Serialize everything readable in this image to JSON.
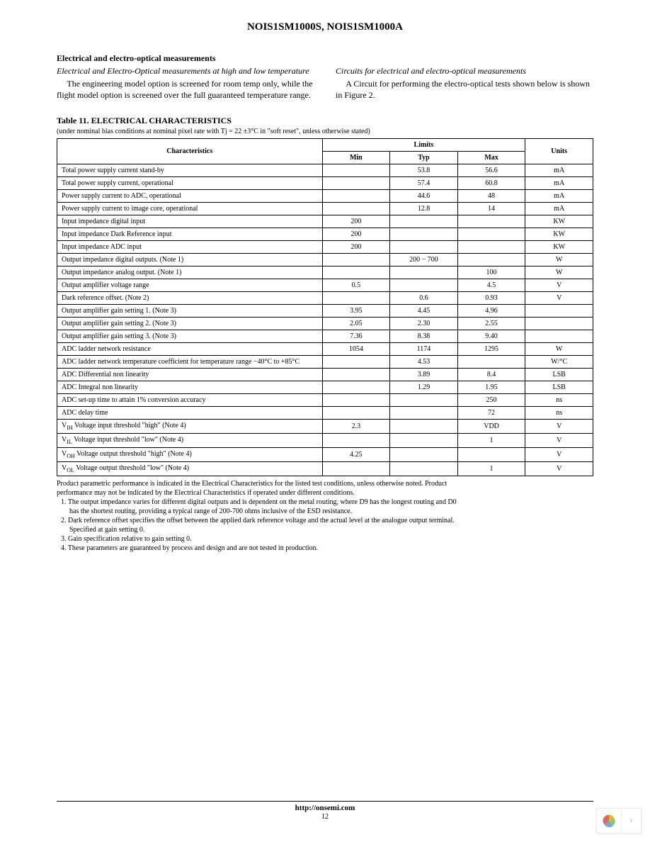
{
  "doc_title": "NOIS1SM1000S, NOIS1SM1000A",
  "section_heading": "Electrical and electro-optical measurements",
  "left_col": {
    "subhead": "Electrical and Electro-Optical measurements at high and low temperature",
    "body": "The engineering model option is screened for room temp only, while the flight model option is screened over the full guaranteed temperature range."
  },
  "right_col": {
    "subhead": "Circuits for electrical and electro-optical measurements",
    "body": "A Circuit for performing the electro-optical tests shown below is shown in Figure 2."
  },
  "table": {
    "title": "Table 11. ELECTRICAL CHARACTERISTICS",
    "subtitle": "(under nominal bias conditions at nominal pixel rate with Tj = 22 ±3°C in \"soft reset\", unless otherwise stated)",
    "header": {
      "characteristics": "Characteristics",
      "limits": "Limits",
      "min": "Min",
      "typ": "Typ",
      "max": "Max",
      "units": "Units"
    },
    "rows": [
      {
        "c": "Total power supply current stand-by",
        "min": "",
        "typ": "53.8",
        "max": "56.6",
        "u": "mA"
      },
      {
        "c": "Total power supply current, operational",
        "min": "",
        "typ": "57.4",
        "max": "60.8",
        "u": "mA"
      },
      {
        "c": "Power supply current to ADC, operational",
        "min": "",
        "typ": "44.6",
        "max": "48",
        "u": "mA"
      },
      {
        "c": "Power supply current to image core, operational",
        "min": "",
        "typ": "12.8",
        "max": "14",
        "u": "mA"
      },
      {
        "c": "Input impedance digital input",
        "min": "200",
        "typ": "",
        "max": "",
        "u": "KW"
      },
      {
        "c": "Input impedance Dark Reference input",
        "min": "200",
        "typ": "",
        "max": "",
        "u": "KW"
      },
      {
        "c": "Input impedance ADC input",
        "min": "200",
        "typ": "",
        "max": "",
        "u": "KW"
      },
      {
        "c": "Output impedance digital outputs. (Note 1)",
        "min": "",
        "typ": "200 − 700",
        "max": "",
        "u": "W"
      },
      {
        "c": "Output impedance analog output. (Note 1)",
        "min": "",
        "typ": "",
        "max": "100",
        "u": "W"
      },
      {
        "c": "Output amplifier voltage range",
        "min": "0.5",
        "typ": "",
        "max": "4.5",
        "u": "V"
      },
      {
        "c": "Dark reference offset. (Note 2)",
        "min": "",
        "typ": "0.6",
        "max": "0.93",
        "u": "V"
      },
      {
        "c": "Output amplifier gain setting 1. (Note 3)",
        "min": "3.95",
        "typ": "4.45",
        "max": "4.96",
        "u": ""
      },
      {
        "c": "Output amplifier gain setting 2. (Note 3)",
        "min": "2.05",
        "typ": "2.30",
        "max": "2.55",
        "u": ""
      },
      {
        "c": "Output amplifier gain setting 3. (Note 3)",
        "min": "7.36",
        "typ": "8.38",
        "max": "9.40",
        "u": ""
      },
      {
        "c": "ADC ladder network resistance",
        "min": "1054",
        "typ": "1174",
        "max": "1295",
        "u": "W"
      },
      {
        "c": "ADC ladder network temperature coefficient for temperature range −40°C to +85°C",
        "min": "",
        "typ": "4.53",
        "max": "",
        "u": "W/°C"
      },
      {
        "c": "ADC Differential non linearity",
        "min": "",
        "typ": "3.89",
        "max": "8.4",
        "u": "LSB"
      },
      {
        "c": "ADC Integral non linearity",
        "min": "",
        "typ": "1.29",
        "max": "1.95",
        "u": "LSB"
      },
      {
        "c": "ADC set-up time to attain 1% conversion accuracy",
        "min": "",
        "typ": "",
        "max": "250",
        "u": "ns"
      },
      {
        "c": "ADC delay time",
        "min": "",
        "typ": "",
        "max": "72",
        "u": "ns"
      },
      {
        "c": "V__ Voltage input threshold \"high\" (Note 4)",
        "min": "2.3",
        "typ": "",
        "max": "VDD",
        "u": "V",
        "sub": "IH"
      },
      {
        "c": "V__ Voltage input threshold \"low\" (Note 4)",
        "min": "",
        "typ": "",
        "max": "1",
        "u": "V",
        "sub": "IL"
      },
      {
        "c": "V__ Voltage output threshold \"high\" (Note 4)",
        "min": "4.25",
        "typ": "",
        "max": "",
        "u": "V",
        "sub": "OH"
      },
      {
        "c": "V__ Voltage output threshold \"low\" (Note 4)",
        "min": "",
        "typ": "",
        "max": "1",
        "u": "V",
        "sub": "OL"
      }
    ]
  },
  "notes": {
    "intro1": "Product parametric performance is indicated in the Electrical Characteristics for the listed test conditions, unless otherwise noted. Product",
    "intro2": "performance may not be indicated by the Electrical Characteristics if operated under different conditions.",
    "n1a": "1.   The output impedance varies for different digital outputs and is dependent on the metal routing, where D9 has the longest routing and D0",
    "n1b": "has the shortest routing, providing a typical range of 200-700 ohms inclusive of the ESD resistance.",
    "n2a": "2. Dark reference offset specifies the offset between the applied dark reference voltage and the actual level at the analogue output terminal.",
    "n2b": "Specified at gain setting 0.",
    "n3": "3. Gain specification relative to gain setting 0.",
    "n4": "4. These parameters are guaranteed by process and design and are not tested in production."
  },
  "footer": {
    "url": "http://onsemi.com",
    "page": "12"
  },
  "widget": {
    "arrow": "›"
  }
}
